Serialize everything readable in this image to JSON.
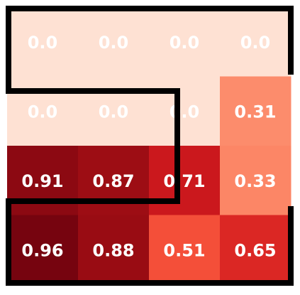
{
  "chart_data": {
    "type": "heatmap",
    "colormap": "Reds",
    "values": [
      [
        0,
        0,
        0,
        0
      ],
      [
        0,
        0,
        0,
        0.31
      ],
      [
        0.91,
        0.87,
        0.71,
        0.33
      ],
      [
        0.96,
        0.88,
        0.51,
        0.65
      ]
    ],
    "value_labels": [
      [
        "0.0",
        "0.0",
        "0.0",
        "0.0"
      ],
      [
        "0.0",
        "0.0",
        "0.0",
        "0.31"
      ],
      [
        "0.91",
        "0.87",
        "0.71",
        "0.33"
      ],
      [
        "0.96",
        "0.88",
        "0.51",
        "0.65"
      ]
    ]
  }
}
